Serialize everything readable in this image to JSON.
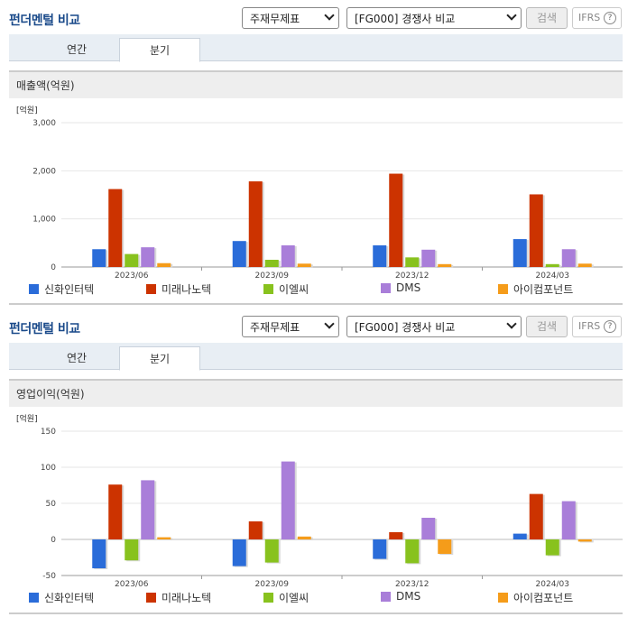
{
  "panels": [
    {
      "title": "펀더멘털 비교",
      "select1": "주재무제표",
      "select2": "[FG000] 경쟁사 비교",
      "search_label": "검색",
      "ifrs_label": "IFRS",
      "help_glyph": "?",
      "tabs": [
        "연간",
        "분기"
      ],
      "section_title": "매출액(억원)"
    },
    {
      "title": "펀더멘털 비교",
      "select1": "주재무제표",
      "select2": "[FG000] 경쟁사 비교",
      "search_label": "검색",
      "ifrs_label": "IFRS",
      "help_glyph": "?",
      "tabs": [
        "연간",
        "분기"
      ],
      "section_title": "영업이익(억원)"
    }
  ],
  "colors": {
    "신화인터텍": "#2a6cd9",
    "미래나노텍": "#cc3300",
    "이엘씨": "#88c21e",
    "DMS": "#a97ed9",
    "아이컴포넌트": "#f59c1a"
  },
  "chart_data": [
    {
      "type": "bar",
      "unit_label": "[억원]",
      "categories": [
        "2023/06",
        "2023/09",
        "2023/12",
        "2024/03"
      ],
      "ylim": [
        0,
        3000
      ],
      "yticks": [
        0,
        1000,
        2000,
        3000
      ],
      "ytick_labels": [
        "0",
        "1,000",
        "2,000",
        "3,000"
      ],
      "series": [
        {
          "name": "신화인터텍",
          "values": [
            370,
            540,
            450,
            580
          ]
        },
        {
          "name": "미래나노텍",
          "values": [
            1620,
            1780,
            1940,
            1510
          ]
        },
        {
          "name": "이엘씨",
          "values": [
            270,
            150,
            200,
            60
          ]
        },
        {
          "name": "DMS",
          "values": [
            410,
            450,
            360,
            370
          ]
        },
        {
          "name": "아이컴포넌트",
          "values": [
            80,
            70,
            60,
            70
          ]
        }
      ]
    },
    {
      "type": "bar",
      "unit_label": "[억원]",
      "categories": [
        "2023/06",
        "2023/09",
        "2023/12",
        "2024/03"
      ],
      "ylim": [
        -50,
        150
      ],
      "yticks": [
        -50,
        0,
        50,
        100,
        150
      ],
      "ytick_labels": [
        "-50",
        "0",
        "50",
        "100",
        "150"
      ],
      "series": [
        {
          "name": "신화인터텍",
          "values": [
            -40,
            -37,
            -27,
            8
          ]
        },
        {
          "name": "미래나노텍",
          "values": [
            76,
            25,
            10,
            63
          ]
        },
        {
          "name": "이엘씨",
          "values": [
            -29,
            -32,
            -33,
            -22
          ]
        },
        {
          "name": "DMS",
          "values": [
            82,
            108,
            30,
            53
          ]
        },
        {
          "name": "아이컴포넌트",
          "values": [
            3,
            4,
            -20,
            -3
          ]
        }
      ]
    }
  ]
}
